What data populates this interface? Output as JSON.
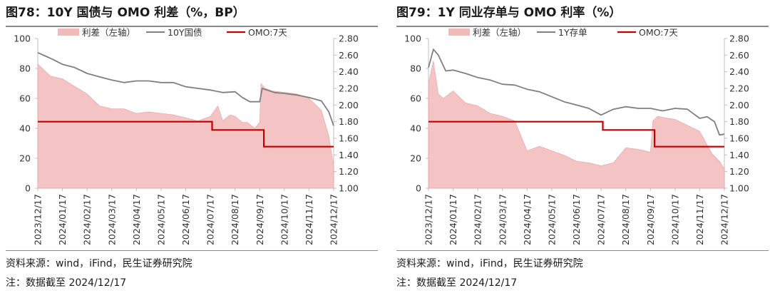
{
  "colors": {
    "spread_fill": "#f2b9b9",
    "spread_edge": "#e8a0a0",
    "yield": "#7f7f7f",
    "omo": "#c00000",
    "axis": "#bfbfbf",
    "text": "#333333"
  },
  "chart_data": [
    {
      "type": "area+line",
      "title": "图78：10Y 国债与 OMO 利差（%，BP）",
      "source": "资料来源：wind，iFind，民生证券研究院",
      "note": "注：数据截至 2024/12/17",
      "x_ticks": [
        "2023/12/17",
        "2024/01/17",
        "2024/02/17",
        "2024/03/17",
        "2024/04/17",
        "2024/05/17",
        "2024/06/17",
        "2024/07/17",
        "2024/08/17",
        "2024/09/17",
        "2024/10/17",
        "2024/11/17",
        "2024/12/17"
      ],
      "left_axis": {
        "label": "利差（左轴）",
        "ylim": [
          0,
          100
        ],
        "ticks": [
          "0",
          "20",
          "40",
          "60",
          "80",
          "100"
        ]
      },
      "right_axis": {
        "ylim": [
          1.0,
          2.8
        ],
        "ticks": [
          "1.00",
          "1.20",
          "1.40",
          "1.60",
          "1.80",
          "2.00",
          "2.20",
          "2.40",
          "2.60",
          "2.80"
        ]
      },
      "legend": [
        "利差（左轴）",
        "10Y国债",
        "OMO:7天"
      ],
      "series": [
        {
          "name": "利差（左轴）",
          "axis": "left",
          "kind": "area",
          "x": [
            0,
            0.5,
            1,
            1.5,
            2,
            2.5,
            3,
            3.5,
            4,
            4.5,
            5,
            5.5,
            6,
            6.5,
            7,
            7.3,
            7.5,
            7.8,
            8,
            8.3,
            8.5,
            8.8,
            9,
            9.05,
            9.2,
            9.5,
            10,
            10.5,
            11,
            11.5,
            11.8,
            12
          ],
          "values": [
            83,
            75,
            73,
            68,
            63,
            55,
            53,
            53,
            50,
            51,
            50,
            49,
            47,
            45,
            48,
            55,
            45,
            49,
            48,
            44,
            44,
            40,
            44,
            70,
            67,
            65,
            64,
            63,
            60,
            52,
            35,
            15
          ]
        },
        {
          "name": "10Y国债",
          "axis": "right",
          "kind": "line",
          "x": [
            0,
            0.3,
            0.6,
            1,
            1.5,
            2,
            2.5,
            3,
            3.5,
            4,
            4.5,
            5,
            5.5,
            6,
            6.5,
            7,
            7.5,
            8,
            8.3,
            8.6,
            9,
            9.1,
            9.3,
            9.6,
            10,
            10.5,
            11,
            11.5,
            11.8,
            12
          ],
          "values": [
            2.63,
            2.59,
            2.55,
            2.49,
            2.45,
            2.38,
            2.34,
            2.3,
            2.27,
            2.29,
            2.29,
            2.27,
            2.27,
            2.22,
            2.2,
            2.18,
            2.15,
            2.16,
            2.09,
            2.04,
            2.04,
            2.2,
            2.18,
            2.15,
            2.14,
            2.12,
            2.09,
            2.05,
            1.92,
            1.75
          ]
        },
        {
          "name": "OMO:7天",
          "axis": "right",
          "kind": "step",
          "x": [
            0,
            7.07,
            7.07,
            9.17,
            9.17,
            12
          ],
          "values": [
            1.8,
            1.8,
            1.7,
            1.7,
            1.5,
            1.5
          ]
        }
      ]
    },
    {
      "type": "area+line",
      "title": "图79：1Y 同业存单与 OMO 利率（%）",
      "source": "资料来源：wind，iFind，民生证券研究院",
      "note": "注：数据截至 2024/12/17",
      "x_ticks": [
        "2023/12/17",
        "2024/01/17",
        "2024/02/17",
        "2024/03/17",
        "2024/04/17",
        "2024/05/17",
        "2024/06/17",
        "2024/07/17",
        "2024/08/17",
        "2024/09/17",
        "2024/10/17",
        "2024/11/17",
        "2024/12/17"
      ],
      "left_axis": {
        "label": "利差（左轴）",
        "ylim": [
          0,
          100
        ],
        "ticks": [
          "0",
          "20",
          "40",
          "60",
          "80",
          "100"
        ]
      },
      "right_axis": {
        "ylim": [
          1.0,
          2.8
        ],
        "ticks": [
          "1.00",
          "1.20",
          "1.40",
          "1.60",
          "1.80",
          "2.00",
          "2.20",
          "2.40",
          "2.60",
          "2.80"
        ]
      },
      "legend": [
        "利差（左轴）",
        "1Y存单",
        "OMO:7天"
      ],
      "series": [
        {
          "name": "利差（左轴）",
          "axis": "left",
          "kind": "area",
          "x": [
            0,
            0.2,
            0.4,
            0.6,
            1,
            1.5,
            2,
            2.5,
            3,
            3.5,
            4,
            4.5,
            5,
            5.5,
            6,
            6.5,
            7,
            7.5,
            8,
            8.5,
            9,
            9.1,
            9.3,
            9.6,
            10,
            10.5,
            11,
            11.5,
            11.8,
            12
          ],
          "values": [
            70,
            85,
            63,
            60,
            65,
            57,
            55,
            50,
            48,
            45,
            25,
            28,
            25,
            22,
            18,
            17,
            15,
            17,
            27,
            26,
            24,
            45,
            48,
            47,
            46,
            42,
            38,
            23,
            18,
            13
          ]
        },
        {
          "name": "1Y存单",
          "axis": "right",
          "kind": "line",
          "x": [
            0,
            0.2,
            0.4,
            0.7,
            1,
            1.5,
            2,
            2.5,
            3,
            3.5,
            4,
            4.5,
            5,
            5.5,
            6,
            6.5,
            7,
            7.5,
            8,
            8.5,
            9,
            9.5,
            10,
            10.5,
            11,
            11.3,
            11.6,
            11.8,
            12
          ],
          "values": [
            2.45,
            2.67,
            2.6,
            2.41,
            2.42,
            2.38,
            2.33,
            2.3,
            2.25,
            2.24,
            2.19,
            2.16,
            2.1,
            2.04,
            2.0,
            1.96,
            1.88,
            1.95,
            1.98,
            1.96,
            1.96,
            1.93,
            1.96,
            1.95,
            1.84,
            1.86,
            1.8,
            1.64,
            1.65
          ]
        },
        {
          "name": "OMO:7天",
          "axis": "right",
          "kind": "step",
          "x": [
            0,
            7.07,
            7.07,
            9.17,
            9.17,
            12
          ],
          "values": [
            1.8,
            1.8,
            1.7,
            1.7,
            1.5,
            1.5
          ]
        }
      ]
    }
  ]
}
